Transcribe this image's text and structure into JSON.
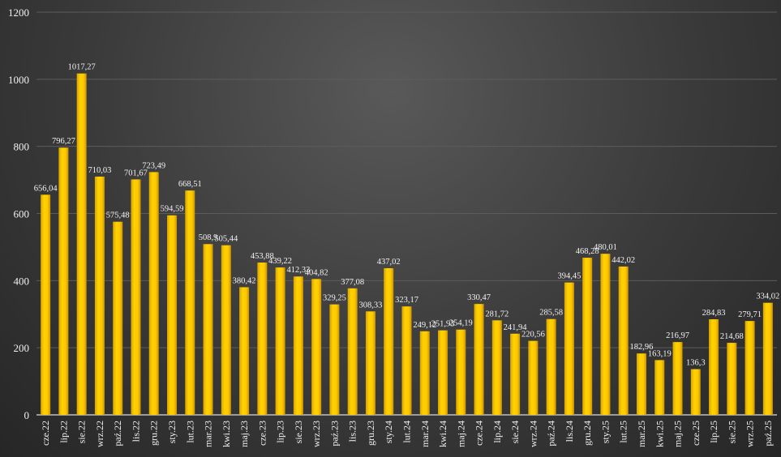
{
  "chart_data": {
    "type": "bar",
    "title": "",
    "xlabel": "",
    "ylabel": "",
    "ylim": [
      0,
      1200
    ],
    "yticks": [
      0,
      200,
      400,
      600,
      800,
      1000,
      1200
    ],
    "grid": true,
    "legend": "none",
    "bar_color": "#FFC800",
    "background": "#3a3a3a",
    "categories": [
      "cze.22",
      "lip.22",
      "sie.22",
      "wrz.22",
      "paź.22",
      "lis.22",
      "gru.22",
      "sty.23",
      "lut.23",
      "mar.23",
      "kwi.23",
      "maj.23",
      "cze.23",
      "lip.23",
      "sie.23",
      "wrz.23",
      "paź.23",
      "lis.23",
      "gru.23",
      "sty.24",
      "lut.24",
      "mar.24",
      "kwi.24",
      "maj.24",
      "cze.24",
      "lip.24",
      "sie.24",
      "wrz.24",
      "paź.24",
      "lis.24",
      "gru.24",
      "sty.25",
      "lut.25",
      "mar.25",
      "kwi.25",
      "maj.25",
      "cze.25",
      "lip.25",
      "sie.25",
      "wrz.25",
      "paź.25"
    ],
    "values": [
      656.04,
      796.27,
      1017.27,
      710.03,
      575.48,
      701.67,
      723.49,
      594.59,
      668.51,
      508.9,
      505.44,
      380.42,
      453.88,
      439.22,
      412.33,
      404.82,
      329.25,
      377.08,
      308.33,
      437.02,
      323.17,
      249.12,
      251.93,
      254.19,
      330.47,
      281.72,
      241.94,
      220.56,
      285.58,
      394.45,
      468.28,
      480.01,
      442.02,
      182.96,
      163.19,
      216.97,
      136.3,
      284.83,
      214.68,
      279.71,
      334.02
    ],
    "data_labels": [
      "656,04",
      "796,27",
      "1017,27",
      "710,03",
      "575,48",
      "701,67",
      "723,49",
      "594,59",
      "668,51",
      "508,9",
      "505,44",
      "380,42",
      "453,88",
      "439,22",
      "412,33",
      "404,82",
      "329,25",
      "377,08",
      "308,33",
      "437,02",
      "323,17",
      "249,12",
      "251,93",
      "254,19",
      "330,47",
      "281,72",
      "241,94",
      "220,56",
      "285,58",
      "394,45",
      "468,28",
      "480,01",
      "442,02",
      "182,96",
      "163,19",
      "216,97",
      "136,3",
      "284,83",
      "214,68",
      "279,71",
      "334,02"
    ]
  }
}
